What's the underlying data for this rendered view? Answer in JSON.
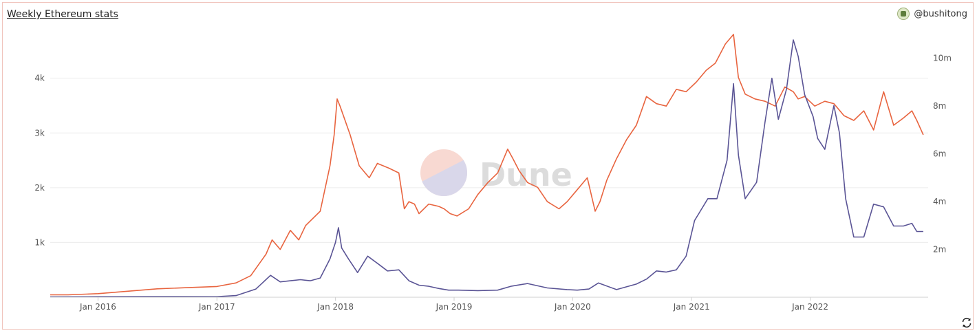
{
  "header": {
    "title": "Weekly Ethereum stats",
    "author": "@bushitong"
  },
  "watermark": "Dune",
  "colors": {
    "series_orange": "#e8643f",
    "series_purple": "#5a5495",
    "grid": "#ececec",
    "border": "#f0c4bc"
  },
  "icons": {
    "avatar": "avatar-icon",
    "refresh": "refresh-icon"
  },
  "chart_data": {
    "type": "line",
    "grid": true,
    "legend": "none",
    "x_ticks": [
      "Jan 2016",
      "Jan 2017",
      "Jan 2018",
      "Jan 2019",
      "Jan 2020",
      "Jan 2021",
      "Jan 2022"
    ],
    "y_left": {
      "ticks": [
        "1k",
        "2k",
        "3k",
        "4k"
      ],
      "range": [
        0,
        4800
      ]
    },
    "y_right": {
      "ticks": [
        "2m",
        "4m",
        "6m",
        "8m",
        "10m"
      ],
      "range": [
        0,
        11000000
      ]
    },
    "series": [
      {
        "axis": "right",
        "color": "#e8643f",
        "x": [
          "2015-08-07",
          "2015-10-01",
          "2016-01-01",
          "2016-04-01",
          "2016-07-01",
          "2016-10-01",
          "2017-01-01",
          "2017-03-01",
          "2017-04-15",
          "2017-06-01",
          "2017-06-20",
          "2017-07-15",
          "2017-08-15",
          "2017-09-10",
          "2017-10-01",
          "2017-11-15",
          "2017-12-15",
          "2017-12-28",
          "2018-01-06",
          "2018-01-15",
          "2018-02-15",
          "2018-03-15",
          "2018-04-15",
          "2018-05-10",
          "2018-06-15",
          "2018-07-15",
          "2018-08-01",
          "2018-08-15",
          "2018-09-01",
          "2018-09-15",
          "2018-10-15",
          "2018-11-15",
          "2018-12-01",
          "2018-12-20",
          "2019-01-10",
          "2019-02-15",
          "2019-03-15",
          "2019-04-15",
          "2019-05-15",
          "2019-06-15",
          "2019-07-01",
          "2019-07-20",
          "2019-08-15",
          "2019-09-15",
          "2019-10-15",
          "2019-11-20",
          "2019-12-15",
          "2020-01-15",
          "2020-02-15",
          "2020-03-10",
          "2020-03-25",
          "2020-04-15",
          "2020-05-15",
          "2020-06-15",
          "2020-07-15",
          "2020-08-15",
          "2020-09-15",
          "2020-10-15",
          "2020-11-15",
          "2020-12-15",
          "2021-01-15",
          "2021-02-15",
          "2021-03-15",
          "2021-04-15",
          "2021-05-10",
          "2021-05-25",
          "2021-06-15",
          "2021-07-15",
          "2021-08-15",
          "2021-09-15",
          "2021-10-15",
          "2021-11-10",
          "2021-11-25",
          "2021-12-15",
          "2022-01-15",
          "2022-02-15",
          "2022-03-15",
          "2022-04-15",
          "2022-05-15",
          "2022-06-15",
          "2022-07-15",
          "2022-08-15",
          "2022-09-15",
          "2022-10-15",
          "2022-11-10",
          "2022-11-25",
          "2022-12-15"
        ],
        "values": [
          100000,
          100000,
          150000,
          250000,
          350000,
          400000,
          450000,
          600000,
          900000,
          1800000,
          2400000,
          2000000,
          2800000,
          2400000,
          3000000,
          3600000,
          5500000,
          6800000,
          8300000,
          8000000,
          6800000,
          5500000,
          5000000,
          5600000,
          5400000,
          5200000,
          3700000,
          4000000,
          3900000,
          3500000,
          3900000,
          3800000,
          3700000,
          3500000,
          3400000,
          3700000,
          4300000,
          4800000,
          5200000,
          6200000,
          5800000,
          5300000,
          4800000,
          4600000,
          4000000,
          3700000,
          4000000,
          4500000,
          5000000,
          3600000,
          4000000,
          4900000,
          5800000,
          6600000,
          7200000,
          8400000,
          8100000,
          8000000,
          8700000,
          8600000,
          9000000,
          9500000,
          9800000,
          10600000,
          11000000,
          9200000,
          8500000,
          8300000,
          8200000,
          8000000,
          8800000,
          8600000,
          8300000,
          8400000,
          8000000,
          8200000,
          8100000,
          7600000,
          7400000,
          7800000,
          7000000,
          8600000,
          7200000,
          7500000,
          7800000,
          7400000,
          6800000
        ]
      },
      {
        "axis": "left",
        "color": "#5a5495",
        "x": [
          "2015-08-07",
          "2016-01-01",
          "2016-06-01",
          "2017-01-01",
          "2017-03-01",
          "2017-05-01",
          "2017-06-15",
          "2017-07-15",
          "2017-08-15",
          "2017-09-15",
          "2017-10-15",
          "2017-11-15",
          "2017-12-15",
          "2018-01-01",
          "2018-01-10",
          "2018-01-20",
          "2018-02-10",
          "2018-03-10",
          "2018-04-10",
          "2018-05-10",
          "2018-06-10",
          "2018-07-15",
          "2018-08-15",
          "2018-09-15",
          "2018-10-15",
          "2018-11-15",
          "2018-12-15",
          "2019-01-15",
          "2019-03-15",
          "2019-05-15",
          "2019-06-25",
          "2019-08-15",
          "2019-10-15",
          "2019-12-15",
          "2020-01-15",
          "2020-02-20",
          "2020-03-20",
          "2020-05-15",
          "2020-07-15",
          "2020-08-15",
          "2020-09-15",
          "2020-10-15",
          "2020-11-15",
          "2020-12-15",
          "2021-01-10",
          "2021-02-20",
          "2021-03-20",
          "2021-04-20",
          "2021-05-10",
          "2021-05-25",
          "2021-06-15",
          "2021-07-20",
          "2021-08-15",
          "2021-09-05",
          "2021-09-25",
          "2021-10-20",
          "2021-11-10",
          "2021-11-25",
          "2021-12-15",
          "2022-01-10",
          "2022-01-24",
          "2022-02-15",
          "2022-03-15",
          "2022-04-01",
          "2022-04-20",
          "2022-05-15",
          "2022-06-15",
          "2022-07-15",
          "2022-08-15",
          "2022-09-15",
          "2022-10-15",
          "2022-11-10",
          "2022-11-25",
          "2022-12-15"
        ],
        "values": [
          8,
          10,
          12,
          10,
          30,
          150,
          400,
          280,
          300,
          320,
          300,
          350,
          700,
          1000,
          1270,
          900,
          700,
          450,
          750,
          620,
          480,
          500,
          300,
          220,
          200,
          160,
          130,
          130,
          120,
          130,
          200,
          250,
          170,
          140,
          130,
          150,
          260,
          140,
          240,
          330,
          480,
          460,
          500,
          750,
          1400,
          1800,
          1800,
          2500,
          3900,
          2600,
          1800,
          2100,
          3200,
          4000,
          3250,
          3800,
          4700,
          4400,
          3700,
          3300,
          2900,
          2700,
          3500,
          3000,
          1800,
          1100,
          1100,
          1700,
          1650,
          1300,
          1300,
          1350,
          1200,
          1200
        ]
      }
    ]
  }
}
